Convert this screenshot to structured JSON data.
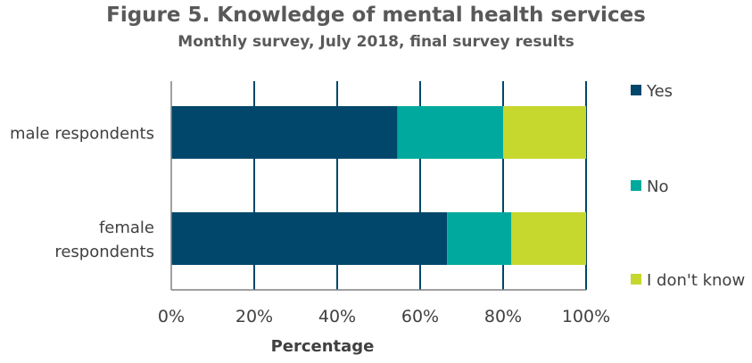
{
  "chart_data": {
    "type": "bar",
    "orientation": "horizontal",
    "stacked": true,
    "title": "Figure 5. Knowledge of mental health services",
    "subtitle": "Monthly survey, July 2018, final survey results",
    "xlabel": "Percentage",
    "ylabel": "",
    "xlim": [
      0,
      100
    ],
    "x_ticks": [
      "0%",
      "20%",
      "40%",
      "60%",
      "80%",
      "100%"
    ],
    "grid": "vertical",
    "legend_position": "right",
    "categories": [
      [
        "male respondents"
      ],
      [
        "female",
        "respondents"
      ]
    ],
    "series": [
      {
        "name": "Yes",
        "color": "#00476b",
        "values": [
          54.5,
          66.5
        ]
      },
      {
        "name": "No",
        "color": "#00a99d",
        "values": [
          25.5,
          15.5
        ]
      },
      {
        "name": "I don't know",
        "color": "#c6d72e",
        "values": [
          20.0,
          18.0
        ]
      }
    ]
  }
}
